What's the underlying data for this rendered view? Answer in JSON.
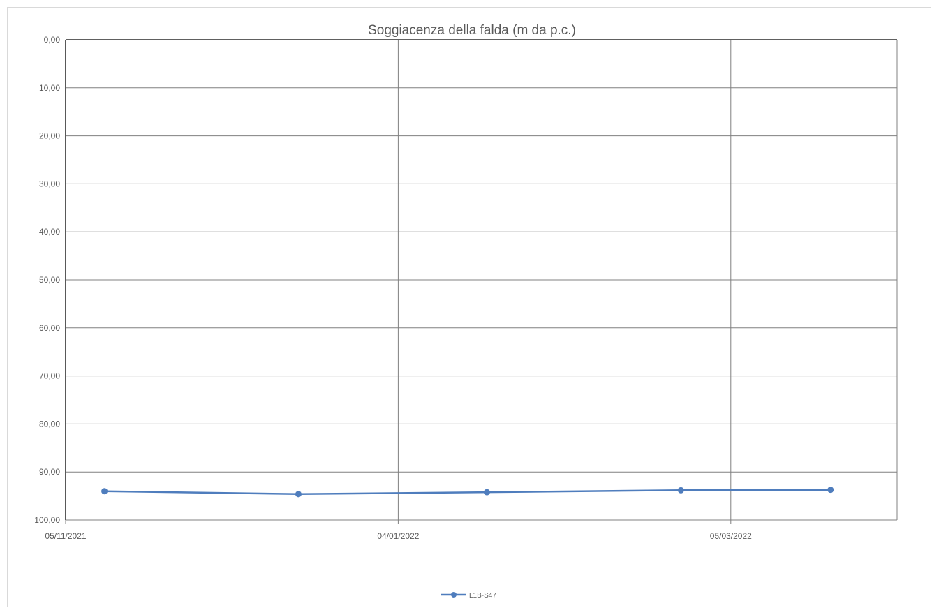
{
  "chart_data": {
    "type": "line",
    "title": "Soggiacenza della falda (m da p.c.)",
    "xlabel": "",
    "ylabel": "",
    "y_reversed": true,
    "ylim": [
      0,
      100
    ],
    "y_ticks": [
      0,
      10,
      20,
      30,
      40,
      50,
      60,
      70,
      80,
      90,
      100
    ],
    "y_tick_labels": [
      "0,00",
      "10,00",
      "20,00",
      "30,00",
      "40,00",
      "50,00",
      "60,00",
      "70,00",
      "80,00",
      "90,00",
      "100,00"
    ],
    "xlim": [
      "2021-11-05",
      "2022-04-04"
    ],
    "x_ticks": [
      "2021-11-05",
      "2022-01-04",
      "2022-03-05"
    ],
    "x_tick_labels": [
      "05/11/2021",
      "04/01/2022",
      "05/03/2022"
    ],
    "grid": true,
    "legend_position": "bottom",
    "series": [
      {
        "name": "L1B-S47",
        "color": "#4f7dbd",
        "x": [
          "2021-11-12",
          "2021-12-17",
          "2022-01-20",
          "2022-02-24",
          "2022-03-23"
        ],
        "y": [
          94.0,
          94.6,
          94.2,
          93.8,
          93.7
        ]
      }
    ]
  }
}
